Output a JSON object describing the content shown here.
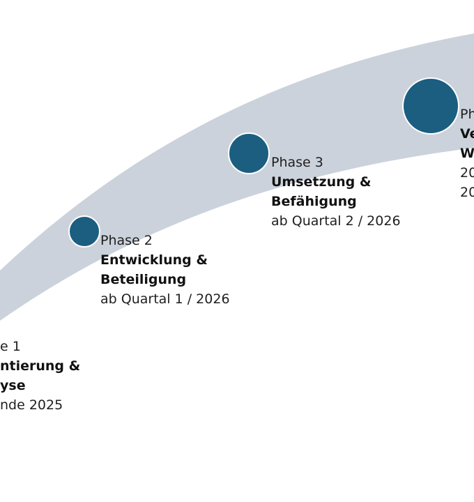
{
  "colors": {
    "band": "#cbd2db",
    "dot": "#1b5e80",
    "dot_border": "#ffffff",
    "text": "#1f1f1f"
  },
  "phases": [
    {
      "label": "e 1",
      "name_line1": "ntierung &",
      "name_line2": "yse",
      "timing": "nde 2025"
    },
    {
      "label": "Phase 2",
      "name_line1": "Entwicklung &",
      "name_line2": "Beteiligung",
      "timing": "ab Quartal 1 / 2026"
    },
    {
      "label": "Phase 3",
      "name_line1": "Umsetzung &",
      "name_line2": "Befähigung",
      "timing": "ab Quartal 2 / 2026"
    },
    {
      "label": "Ph",
      "name_line1": "Ve",
      "name_line2": "W",
      "timing": "20",
      "timing2": "20"
    }
  ]
}
